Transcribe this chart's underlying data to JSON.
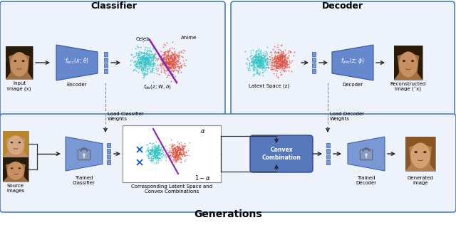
{
  "title_classifier": "Classifier",
  "title_decoder": "Decoder",
  "title_generations": "Generations",
  "bg_color": "#ffffff",
  "box_bg": "#eef2fb",
  "box_border": "#4a7cc7",
  "trapezoid_color": "#6688cc",
  "trapezoid_edge": "#3355aa",
  "scatter_celeb_color": "#2ec4c4",
  "scatter_anime_color": "#e05040",
  "line_color": "#8822bb",
  "convex_box_color": "#5577bb",
  "lock_body_color": "#8899bb",
  "lock_shackle_color": "#556688",
  "small_sq_color": "#7799dd",
  "small_sq_edge": "#3355aa",
  "arrow_color": "#222222",
  "dashed_color": "#888888",
  "face_skin": "#d4a882",
  "face_hair": "#5a3825",
  "face_bg": "#c8a070",
  "lat_box_bg": "#ffffff",
  "lat_box_edge": "#888888",
  "convex_edge": "#334499",
  "font_title": 9,
  "font_label": 5,
  "font_math": 5,
  "font_gen_title": 10
}
